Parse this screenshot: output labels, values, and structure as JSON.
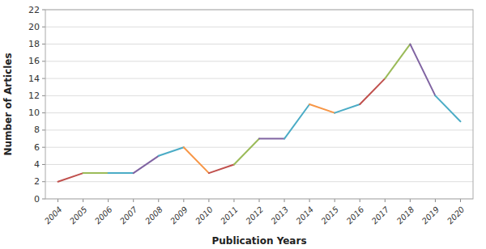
{
  "chart_data": {
    "type": "line",
    "x": [
      2004,
      2005,
      2006,
      2007,
      2008,
      2009,
      2010,
      2011,
      2012,
      2013,
      2014,
      2015,
      2016,
      2017,
      2018,
      2019,
      2020
    ],
    "values": [
      2,
      3,
      3,
      3,
      5,
      6,
      3,
      4,
      7,
      7,
      11,
      10,
      11,
      14,
      18,
      12,
      9
    ],
    "colors": [
      "#c0504d",
      "#9bbb59",
      "#4bacc6",
      "#8064a2",
      "#4bacc6",
      "#f79646",
      "#c0504d",
      "#9bbb59",
      "#8064a2",
      "#4bacc6",
      "#f79646",
      "#4bacc6",
      "#c0504d",
      "#9bbb59",
      "#8064a2",
      "#4bacc6"
    ],
    "xlabel": "Publication Years",
    "ylabel": "Number of Articles",
    "xlim": [
      2003.5,
      2020.5
    ],
    "xticks": [
      2004,
      2005,
      2006,
      2007,
      2008,
      2009,
      2010,
      2011,
      2012,
      2013,
      2014,
      2015,
      2016,
      2017,
      2018,
      2019,
      2020
    ],
    "ylim": [
      0,
      22
    ],
    "yticks": [
      0,
      2,
      4,
      6,
      8,
      10,
      12,
      14,
      16,
      18,
      20,
      22
    ],
    "grid": true
  }
}
